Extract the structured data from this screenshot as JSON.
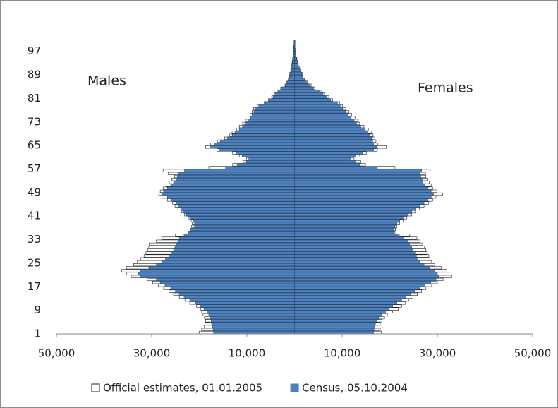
{
  "chart_data": {
    "type": "pyramid",
    "annotations": {
      "left": "Males",
      "right": "Females"
    },
    "categories": [
      1,
      null,
      null,
      null,
      null,
      null,
      null,
      null,
      9,
      null,
      null,
      null,
      null,
      null,
      null,
      null,
      17,
      null,
      null,
      null,
      null,
      null,
      null,
      null,
      25,
      null,
      null,
      null,
      null,
      null,
      null,
      null,
      33,
      null,
      null,
      null,
      null,
      null,
      null,
      null,
      41,
      null,
      null,
      null,
      null,
      null,
      null,
      null,
      49,
      null,
      null,
      null,
      null,
      null,
      null,
      null,
      57,
      null,
      null,
      null,
      null,
      null,
      null,
      null,
      65,
      null,
      null,
      null,
      null,
      null,
      null,
      null,
      73,
      null,
      null,
      null,
      null,
      null,
      null,
      null,
      81,
      null,
      null,
      null,
      null,
      null,
      null,
      null,
      89,
      null,
      null,
      null,
      null,
      null,
      null,
      null,
      97,
      null,
      null,
      null
    ],
    "xlim": [
      -50000,
      50000
    ],
    "xticks": [
      {
        "value": -50000,
        "label": "50,000"
      },
      {
        "value": -30000,
        "label": "30,000"
      },
      {
        "value": -10000,
        "label": "10,000"
      },
      {
        "value": 10000,
        "label": "10,000"
      },
      {
        "value": 30000,
        "label": "30,000"
      },
      {
        "value": 50000,
        "label": "50,000"
      }
    ],
    "series": [
      {
        "name": "Official estimates, 01.01.2005",
        "color": "#ffffff",
        "males": [
          -20000,
          -19500,
          -19000,
          -18800,
          -18700,
          -18900,
          -19200,
          -19500,
          -19700,
          -20600,
          -22000,
          -23000,
          -24200,
          -25400,
          -26400,
          -27500,
          -28600,
          -29800,
          -31000,
          -34300,
          -35300,
          -36300,
          -35300,
          -33800,
          -33000,
          -32300,
          -31600,
          -31200,
          -30800,
          -30600,
          -30500,
          -29000,
          -27900,
          -25000,
          -22000,
          -21800,
          -21600,
          -21500,
          -21700,
          -22300,
          -23100,
          -23700,
          -24500,
          -25100,
          -25600,
          -26700,
          -27900,
          -28500,
          -28200,
          -27600,
          -27000,
          -26300,
          -25800,
          -25200,
          -26500,
          -27600,
          -18000,
          -13000,
          -10800,
          -10100,
          -11600,
          -13000,
          -16300,
          -18700,
          -17600,
          -16200,
          -14700,
          -13600,
          -13100,
          -12200,
          -11600,
          -10900,
          -10300,
          -9800,
          -9300,
          -8900,
          -8600,
          -7800,
          -6400,
          -5500,
          -4800,
          -4200,
          -3700,
          -2900,
          -2000,
          -1600,
          -1300,
          -1100,
          -1000,
          -800,
          -700,
          -600,
          -500,
          -400,
          -300,
          -200,
          -200,
          -200,
          -100,
          -100
        ],
        "females": [
          18200,
          18000,
          17900,
          18000,
          18400,
          18900,
          19500,
          20600,
          21800,
          22500,
          23300,
          24000,
          24900,
          25800,
          26700,
          27600,
          28800,
          30000,
          31200,
          33000,
          32900,
          32000,
          30800,
          29500,
          28800,
          28400,
          28200,
          27900,
          27600,
          27300,
          26900,
          26400,
          25700,
          24200,
          21100,
          21200,
          21500,
          22100,
          22800,
          23600,
          24600,
          25400,
          26200,
          27200,
          28200,
          29000,
          29700,
          31100,
          29900,
          29000,
          28700,
          28300,
          28000,
          27600,
          27500,
          28500,
          21100,
          14900,
          13900,
          12500,
          13700,
          15100,
          17400,
          19300,
          17500,
          17100,
          16900,
          16500,
          16200,
          15500,
          14600,
          13700,
          13400,
          12700,
          12000,
          11400,
          10800,
          10100,
          9500,
          8000,
          7200,
          6300,
          5700,
          4300,
          3500,
          2700,
          2200,
          1800,
          1600,
          1300,
          1000,
          800,
          600,
          500,
          300,
          200,
          200,
          100,
          100,
          100
        ]
      },
      {
        "name": "Census, 05.10.2004",
        "color": "#4f81bd",
        "males": [
          -17000,
          -17100,
          -17200,
          -17400,
          -17500,
          -17700,
          -18000,
          -18400,
          -19000,
          -19700,
          -20800,
          -22000,
          -23200,
          -24200,
          -25000,
          -26000,
          -27200,
          -28200,
          -29000,
          -32300,
          -32800,
          -32300,
          -30600,
          -29000,
          -27900,
          -27100,
          -26400,
          -25900,
          -25400,
          -25100,
          -24900,
          -24500,
          -24200,
          -23200,
          -22300,
          -21600,
          -21000,
          -21000,
          -21300,
          -22000,
          -22700,
          -23300,
          -23900,
          -24400,
          -24900,
          -25800,
          -26700,
          -27900,
          -27500,
          -26700,
          -26000,
          -25400,
          -24900,
          -24600,
          -24300,
          -23100,
          -14500,
          -12000,
          -10100,
          -9600,
          -11000,
          -12300,
          -15700,
          -17800,
          -16800,
          -15600,
          -14100,
          -13100,
          -12500,
          -11600,
          -10900,
          -10200,
          -9600,
          -9200,
          -8900,
          -8500,
          -8300,
          -7500,
          -6100,
          -5200,
          -4500,
          -4000,
          -3500,
          -2800,
          -1900,
          -1500,
          -1200,
          -1000,
          -900,
          -700,
          -600,
          -500,
          -400,
          -300,
          -300,
          -200,
          -200,
          -100,
          -100,
          -100
        ],
        "females": [
          16600,
          16700,
          16800,
          17000,
          17300,
          17700,
          18300,
          19100,
          19900,
          20600,
          21500,
          22500,
          23400,
          24400,
          25200,
          26300,
          27400,
          28600,
          29700,
          30300,
          30000,
          29400,
          28300,
          27200,
          26300,
          25900,
          25600,
          25300,
          24900,
          24600,
          24200,
          23800,
          22800,
          22000,
          20800,
          20800,
          21100,
          21500,
          22100,
          22800,
          23900,
          24600,
          25400,
          26300,
          27200,
          28000,
          28700,
          29200,
          28700,
          28000,
          27400,
          27000,
          26800,
          26500,
          26300,
          26700,
          17400,
          13700,
          12900,
          11700,
          12900,
          14300,
          16600,
          17400,
          16600,
          16400,
          16200,
          15800,
          15400,
          14800,
          13900,
          13000,
          12500,
          11900,
          11300,
          10700,
          10100,
          9600,
          9000,
          7600,
          6800,
          6000,
          5400,
          4000,
          3300,
          2500,
          2100,
          1700,
          1500,
          1200,
          900,
          700,
          600,
          400,
          300,
          200,
          200,
          100,
          100,
          100
        ]
      }
    ]
  }
}
